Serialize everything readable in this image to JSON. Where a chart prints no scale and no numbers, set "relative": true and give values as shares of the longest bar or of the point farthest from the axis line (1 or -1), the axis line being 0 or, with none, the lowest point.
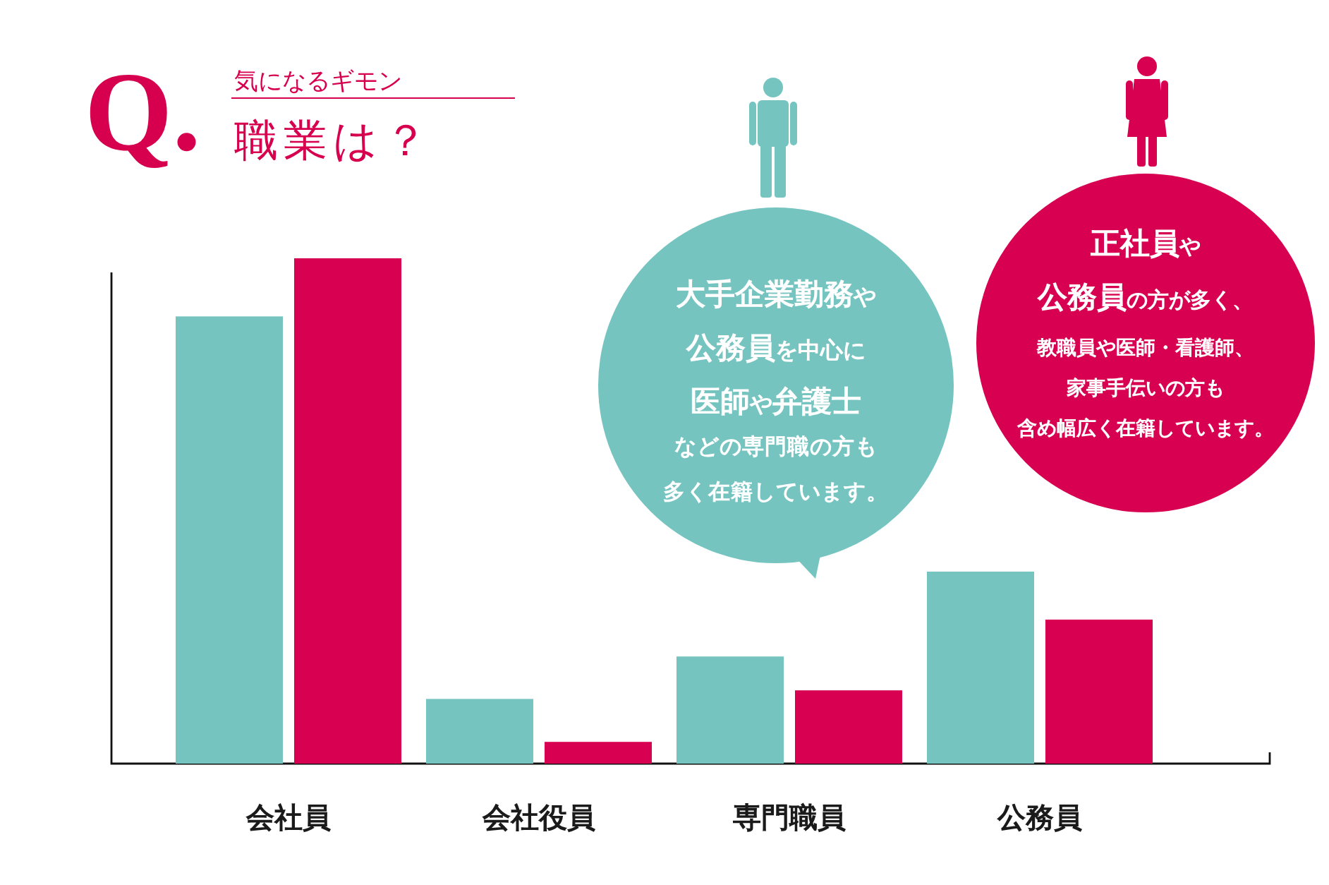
{
  "chart_data": {
    "type": "bar",
    "title": "職業は？",
    "subtitle": "気になるギモン",
    "categories": [
      "会社員",
      "会社役員",
      "専門職員",
      "公務員"
    ],
    "relative": true,
    "series": [
      {
        "color": "#75c4c0",
        "values": [
          0.885,
          0.128,
          0.212,
          0.38
        ]
      },
      {
        "color": "#d70051",
        "values": [
          1,
          0.043,
          0.145,
          0.285
        ]
      }
    ],
    "annotations": [
      "Q.",
      "**大手企業勤務**や",
      "**公務員**を中心に",
      "**医師**や**弁護士**",
      "などの専門職の方も",
      "多く在籍しています。",
      "**正社員**や",
      "**公務員**の方が多く、",
      "教職員や医師・看護師、",
      "家事手伝いの方も",
      "含め幅広く在籍しています。"
    ]
  }
}
